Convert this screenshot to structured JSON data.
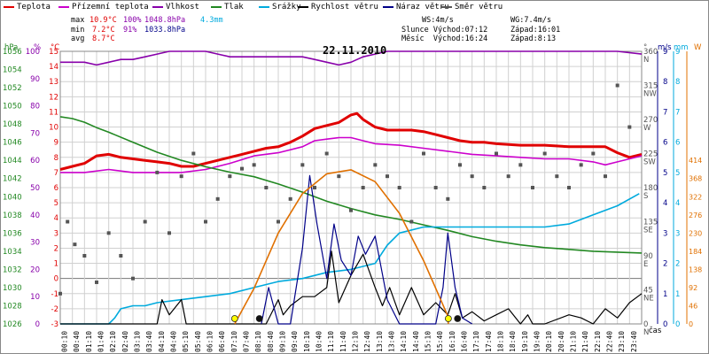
{
  "legend": [
    {
      "label": "Teplota",
      "color": "#e00000"
    },
    {
      "label": "Přízemní teplota",
      "color": "#cc00cc"
    },
    {
      "label": "Vlhkost",
      "color": "#8800aa"
    },
    {
      "label": "Tlak",
      "color": "#228822"
    },
    {
      "label": "Srážky",
      "color": "#00aadd"
    },
    {
      "label": "Rychlost větru",
      "color": "#000000"
    },
    {
      "label": "Náraz větru",
      "color": "#000088"
    },
    {
      "label": "Směr větru",
      "color": "#555555"
    }
  ],
  "stats": {
    "max_label": "max",
    "min_label": "min",
    "avg_label": "avg",
    "max_temp": "10.9°C",
    "max_hum": "100%",
    "max_press": "1048.8hPa",
    "min_temp": "7.2°C",
    "min_hum": "91%",
    "min_press": "1033.8hPa",
    "avg_temp": "8.7°C",
    "rain": "4.3mm",
    "ws": "WS:4m/s",
    "wg": "WG:7.4m/s",
    "sun": "Slunce Východ:07:12",
    "sun_set": "Západ:16:01",
    "moon": "Měsíc  Východ:16:24",
    "moon_set": "Západ:8:13"
  },
  "date": "22.11.2010",
  "units": {
    "hpa": "hPa",
    "pct": "%",
    "degc": "°C",
    "deg": "°",
    "ms": "m/s",
    "mm": "mm",
    "w": "W",
    "cas": "čas"
  },
  "colors": {
    "temp": "#e00000",
    "dew": "#cc00cc",
    "hum": "#8800aa",
    "press": "#228822",
    "rain": "#00aadd",
    "wind": "#000000",
    "gust": "#000088",
    "dir": "#555555",
    "solar": "#e07000",
    "grid": "#d0d0d0"
  },
  "chart_data": {
    "type": "line",
    "x_label": "čas",
    "x_ticks": [
      "00:10",
      "00:40",
      "01:10",
      "01:40",
      "02:10",
      "02:40",
      "03:10",
      "03:40",
      "04:10",
      "04:40",
      "05:10",
      "05:40",
      "06:10",
      "06:40",
      "07:10",
      "07:40",
      "08:10",
      "08:40",
      "09:10",
      "09:40",
      "10:10",
      "10:40",
      "11:10",
      "11:40",
      "12:10",
      "12:40",
      "13:10",
      "13:40",
      "14:10",
      "14:40",
      "15:10",
      "15:40",
      "16:10",
      "16:40",
      "17:10",
      "17:40",
      "18:10",
      "18:40",
      "19:10",
      "19:40",
      "20:10",
      "20:40",
      "21:10",
      "21:40",
      "22:10",
      "22:40",
      "23:10",
      "23:40"
    ],
    "axes": {
      "hpa": {
        "ticks": [
          1026,
          1028,
          1030,
          1032,
          1034,
          1036,
          1038,
          1040,
          1042,
          1044,
          1046,
          1048,
          1050,
          1052,
          1054,
          1056
        ],
        "range": [
          1026,
          1056
        ]
      },
      "pct": {
        "ticks": [
          0,
          10,
          20,
          30,
          40,
          50,
          60,
          70,
          80,
          90,
          100
        ],
        "range": [
          0,
          100
        ]
      },
      "degc": {
        "ticks": [
          -3,
          -2,
          -1,
          0,
          1,
          2,
          3,
          4,
          5,
          6,
          7,
          8,
          9,
          10,
          11,
          12,
          13,
          14,
          15
        ],
        "range": [
          -3,
          15
        ]
      },
      "deg": {
        "ticks": [
          "0 N",
          "45 NE",
          "90 E",
          "135 SE",
          "180 S",
          "225 SW",
          "270 W",
          "315 NW",
          "360 N"
        ],
        "range": [
          0,
          360
        ]
      },
      "ms": {
        "ticks": [
          0,
          1,
          2,
          3,
          4,
          5,
          6,
          7,
          8,
          9
        ],
        "range": [
          0,
          9
        ]
      },
      "mm": {
        "ticks": [
          0,
          1,
          2,
          3,
          4,
          5,
          6,
          7,
          8,
          9
        ],
        "range": [
          0,
          9
        ]
      },
      "w": {
        "ticks": [
          0,
          46,
          92,
          138,
          184,
          230,
          276,
          322,
          368,
          414
        ],
        "range": [
          0,
          690
        ]
      }
    },
    "series": [
      {
        "name": "Teplota",
        "key": "temp",
        "axis": "degc",
        "x": [
          0,
          0.5,
          1,
          1.5,
          2,
          2.5,
          3,
          3.5,
          4,
          4.5,
          5,
          5.5,
          6,
          6.5,
          7,
          7.5,
          8,
          8.5,
          9,
          9.5,
          10,
          10.5,
          11,
          11.5,
          12,
          12.25,
          12.5,
          13,
          13.5,
          14,
          14.5,
          15,
          15.5,
          16,
          16.5,
          17,
          17.5,
          18,
          19,
          20,
          21,
          22,
          22.5,
          23,
          23.5,
          24
        ],
        "y": [
          7.2,
          7.4,
          7.6,
          8.1,
          8.2,
          8.0,
          7.9,
          7.8,
          7.7,
          7.6,
          7.4,
          7.4,
          7.6,
          7.8,
          8.0,
          8.2,
          8.4,
          8.6,
          8.7,
          9.0,
          9.4,
          9.9,
          10.1,
          10.3,
          10.8,
          10.9,
          10.5,
          10.0,
          9.8,
          9.8,
          9.8,
          9.7,
          9.5,
          9.3,
          9.1,
          9.0,
          9.0,
          8.9,
          8.8,
          8.8,
          8.7,
          8.7,
          8.7,
          8.3,
          8.0,
          8.2
        ]
      },
      {
        "name": "Přízemní teplota",
        "key": "dew",
        "axis": "degc",
        "x": [
          0,
          1,
          2,
          3,
          4,
          5,
          6,
          7,
          8,
          9,
          10,
          10.5,
          11,
          11.5,
          12,
          12.5,
          13,
          14,
          15,
          16,
          17,
          18,
          19,
          20,
          21,
          22,
          22.5,
          23,
          23.5,
          24
        ],
        "y": [
          7.0,
          7.0,
          7.2,
          7.0,
          7.0,
          7.0,
          7.2,
          7.6,
          8.1,
          8.3,
          8.7,
          9.1,
          9.2,
          9.3,
          9.3,
          9.1,
          8.9,
          8.8,
          8.6,
          8.4,
          8.2,
          8.1,
          8.0,
          7.9,
          7.9,
          7.7,
          7.5,
          7.7,
          7.9,
          8.1
        ]
      },
      {
        "name": "Vlhkost",
        "key": "hum",
        "axis": "pct",
        "x": [
          0,
          1,
          1.5,
          2,
          2.5,
          3,
          3.5,
          4,
          4.5,
          5,
          6,
          6.5,
          7,
          7.5,
          8,
          9,
          10,
          10.5,
          11,
          11.5,
          12,
          12.5,
          13,
          13.5,
          14,
          16,
          18,
          19,
          20,
          21,
          22,
          23,
          24
        ],
        "y": [
          96,
          96,
          95,
          96,
          97,
          97,
          98,
          99,
          100,
          100,
          100,
          99,
          98,
          98,
          98,
          98,
          98,
          97,
          96,
          95,
          96,
          98,
          99,
          100,
          100,
          100,
          100,
          100,
          100,
          100,
          100,
          100,
          99
        ]
      },
      {
        "name": "Tlak",
        "key": "press",
        "axis": "hpa",
        "x": [
          0,
          0.5,
          1,
          1.5,
          2,
          3,
          4,
          5,
          6,
          7,
          8,
          9,
          10,
          11,
          12,
          13,
          14,
          15,
          16,
          17,
          18,
          19,
          20,
          21,
          22,
          23,
          24
        ],
        "y": [
          1048.8,
          1048.6,
          1048.2,
          1047.6,
          1047.1,
          1046.0,
          1044.9,
          1044.0,
          1043.3,
          1042.7,
          1042.2,
          1041.4,
          1040.5,
          1039.5,
          1038.7,
          1038.0,
          1037.5,
          1036.9,
          1036.3,
          1035.6,
          1035.1,
          1034.7,
          1034.4,
          1034.2,
          1034.0,
          1033.9,
          1033.8
        ]
      },
      {
        "name": "Srážky",
        "key": "rain",
        "axis": "mm",
        "x": [
          0,
          2,
          2.25,
          2.5,
          3,
          3.5,
          4,
          5,
          6,
          7,
          8,
          9,
          10,
          11,
          12,
          13,
          13.5,
          14,
          15,
          16,
          17,
          18,
          19,
          20,
          21,
          22,
          23,
          23.9
        ],
        "y": [
          0,
          0,
          0.2,
          0.5,
          0.6,
          0.6,
          0.7,
          0.8,
          0.9,
          1.0,
          1.2,
          1.4,
          1.5,
          1.7,
          1.8,
          2.0,
          2.6,
          3.0,
          3.2,
          3.2,
          3.2,
          3.2,
          3.2,
          3.2,
          3.3,
          3.6,
          3.9,
          4.3
        ]
      },
      {
        "name": "Rychlost větru",
        "key": "wind",
        "axis": "ms",
        "x": [
          0,
          2,
          4,
          4.2,
          4.5,
          5,
          5.2,
          6,
          7,
          8,
          8.5,
          9,
          9.2,
          9.5,
          10,
          10.5,
          11,
          11.2,
          11.5,
          12,
          12.5,
          13,
          13.3,
          13.6,
          14,
          14.5,
          15,
          15.5,
          16,
          16.3,
          16.6,
          17,
          17.5,
          18,
          18.5,
          19,
          19.3,
          19.5,
          20,
          21,
          21.5,
          22,
          22.5,
          23,
          23.5,
          24
        ],
        "y": [
          0,
          0,
          0,
          0.8,
          0.3,
          0.8,
          0,
          0,
          0,
          0,
          0,
          0.8,
          0.3,
          0.6,
          0.9,
          0.9,
          1.2,
          2.4,
          0.7,
          1.6,
          2.3,
          1.2,
          0.6,
          1.2,
          0.3,
          1.2,
          0.3,
          0.7,
          0.3,
          1.0,
          0.2,
          0.4,
          0.1,
          0.3,
          0.5,
          0,
          0.3,
          0,
          0,
          0.3,
          0.2,
          0,
          0.5,
          0.2,
          0.7,
          1.0
        ]
      },
      {
        "name": "Náraz větru",
        "key": "gust",
        "axis": "ms",
        "x": [
          8.3,
          8.6,
          9,
          9.5,
          10,
          10.3,
          10.6,
          11,
          11.3,
          11.6,
          12,
          12.3,
          12.6,
          13,
          13.5,
          14,
          15.5,
          15.8,
          16,
          16.3,
          16.6,
          17
        ],
        "y": [
          0,
          1.2,
          0,
          0,
          2.5,
          4.9,
          3.3,
          1.5,
          3.3,
          2.1,
          1.6,
          2.9,
          2.3,
          2.9,
          0.8,
          0,
          0,
          1.2,
          3.0,
          1.2,
          0.2,
          0
        ]
      },
      {
        "name": "Směr větru",
        "key": "dir",
        "axis": "deg",
        "x": [
          0,
          0.3,
          0.6,
          1,
          1.5,
          2,
          2.5,
          3,
          3.5,
          4,
          4.5,
          5,
          5.5,
          6,
          6.5,
          7,
          7.5,
          8,
          8.5,
          9,
          9.5,
          10,
          10.5,
          11,
          11.5,
          12,
          12.5,
          13,
          13.5,
          14,
          14.5,
          15,
          15.5,
          16,
          16.5,
          17,
          17.5,
          18,
          18.5,
          19,
          19.5,
          20,
          20.5,
          21,
          21.5,
          22,
          22.5,
          23,
          23.5
        ],
        "y": [
          40,
          135,
          105,
          90,
          55,
          120,
          90,
          60,
          135,
          200,
          120,
          195,
          225,
          135,
          165,
          195,
          205,
          210,
          180,
          135,
          165,
          210,
          180,
          225,
          195,
          150,
          180,
          210,
          195,
          180,
          135,
          225,
          180,
          165,
          210,
          195,
          180,
          225,
          195,
          210,
          180,
          225,
          195,
          180,
          210,
          225,
          195,
          315,
          260
        ]
      },
      {
        "name": "",
        "key": "solar",
        "axis": "w",
        "x": [
          7.2,
          8,
          9,
          10,
          11,
          12,
          13,
          14,
          15,
          16,
          16.02
        ],
        "y": [
          0,
          90,
          230,
          330,
          380,
          390,
          360,
          280,
          160,
          20,
          0
        ]
      }
    ],
    "markers": [
      {
        "name": "sunrise",
        "x": 7.2,
        "color": "#ffff00"
      },
      {
        "name": "moonset",
        "x": 8.22,
        "color": "#111111"
      },
      {
        "name": "sunset",
        "x": 16.02,
        "color": "#ffff00"
      },
      {
        "name": "moonrise",
        "x": 16.4,
        "color": "#111111"
      }
    ]
  }
}
